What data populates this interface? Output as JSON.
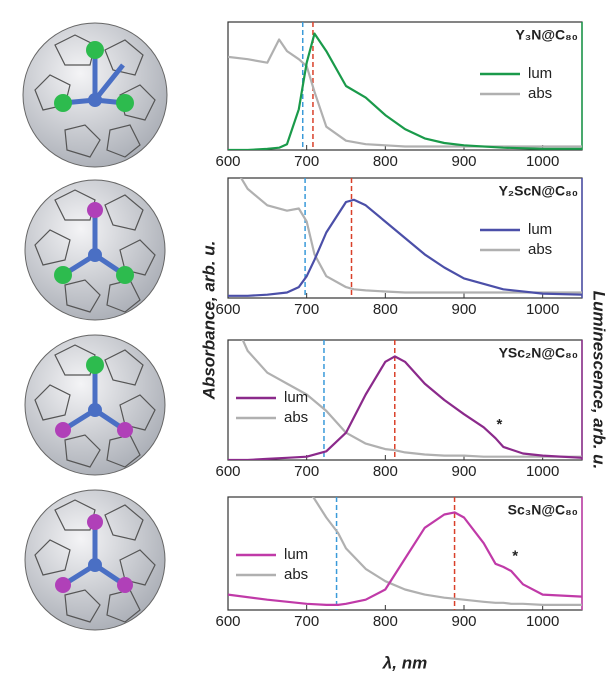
{
  "figure": {
    "x_label": "λ, nm",
    "y_label": "Absorbance, arb. u.",
    "y2_label": "Luminescence, arb. u."
  },
  "chart_data": [
    {
      "type": "line",
      "title": "Y₃N@C₈₀",
      "legend": "right",
      "frame_color": "#1a9a4a",
      "x": [
        600,
        625,
        650,
        665,
        675,
        690,
        700,
        710,
        725,
        750,
        775,
        800,
        825,
        850,
        875,
        900,
        950,
        1000,
        1050
      ],
      "series": [
        {
          "name": "lum",
          "color": "#1a9a4a",
          "values": [
            0,
            0,
            0.01,
            0.02,
            0.05,
            0.35,
            0.75,
            1.0,
            0.85,
            0.55,
            0.45,
            0.3,
            0.18,
            0.1,
            0.06,
            0.04,
            0.02,
            0.01,
            0.01
          ]
        },
        {
          "name": "abs",
          "color": "#b0b0b0",
          "values": [
            0.8,
            0.78,
            0.75,
            0.95,
            0.85,
            0.78,
            0.72,
            0.5,
            0.2,
            0.08,
            0.05,
            0.04,
            0.03,
            0.03,
            0.03,
            0.03,
            0.03,
            0.03,
            0.03
          ]
        }
      ],
      "vlines": [
        {
          "x": 695,
          "color": "#3a9ad9"
        },
        {
          "x": 708,
          "color": "#d9402a"
        }
      ],
      "xlim": [
        600,
        1050
      ],
      "xticks": [
        600,
        700,
        800,
        900,
        1000
      ],
      "ylim": [
        0,
        1.1
      ]
    },
    {
      "type": "line",
      "title": "Y₂ScN@C₈₀",
      "legend": "right",
      "frame_color": "#4b4fa8",
      "x": [
        600,
        625,
        650,
        675,
        690,
        700,
        710,
        725,
        750,
        760,
        775,
        800,
        825,
        850,
        875,
        900,
        950,
        1000,
        1050
      ],
      "series": [
        {
          "name": "lum",
          "color": "#4b4fa8",
          "values": [
            0.02,
            0.02,
            0.03,
            0.05,
            0.1,
            0.2,
            0.35,
            0.6,
            0.88,
            0.9,
            0.85,
            0.7,
            0.55,
            0.4,
            0.28,
            0.18,
            0.08,
            0.04,
            0.03
          ]
        },
        {
          "name": "abs",
          "color": "#b0b0b0",
          "values": [
            1.3,
            1.0,
            0.85,
            0.8,
            0.82,
            0.7,
            0.4,
            0.2,
            0.1,
            0.08,
            0.07,
            0.06,
            0.05,
            0.05,
            0.05,
            0.05,
            0.05,
            0.05,
            0.05
          ]
        }
      ],
      "vlines": [
        {
          "x": 698,
          "color": "#3a9ad9"
        },
        {
          "x": 757,
          "color": "#d9402a"
        }
      ],
      "xlim": [
        600,
        1050
      ],
      "xticks": [
        600,
        700,
        800,
        900,
        1000
      ],
      "ylim": [
        0,
        1.1
      ]
    },
    {
      "type": "line",
      "title": "YSc₂N@C₈₀",
      "legend": "left",
      "frame_color": "#8b2a8b",
      "x": [
        600,
        625,
        650,
        675,
        700,
        725,
        750,
        775,
        800,
        812,
        825,
        850,
        875,
        900,
        925,
        940,
        950,
        975,
        1000,
        1050
      ],
      "series": [
        {
          "name": "lum",
          "color": "#8b2a8b",
          "values": [
            0,
            0,
            0.01,
            0.02,
            0.03,
            0.08,
            0.25,
            0.6,
            0.9,
            0.95,
            0.9,
            0.7,
            0.55,
            0.42,
            0.3,
            0.2,
            0.12,
            0.06,
            0.04,
            0.02
          ]
        },
        {
          "name": "abs",
          "color": "#b0b0b0",
          "values": [
            1.4,
            1.0,
            0.8,
            0.7,
            0.6,
            0.45,
            0.25,
            0.15,
            0.1,
            0.09,
            0.07,
            0.05,
            0.04,
            0.04,
            0.03,
            0.03,
            0.03,
            0.03,
            0.03,
            0.03
          ]
        }
      ],
      "vlines": [
        {
          "x": 722,
          "color": "#3a9ad9"
        },
        {
          "x": 812,
          "color": "#d9402a"
        }
      ],
      "annotations": [
        {
          "text": "*",
          "x": 945,
          "y": 0.32
        }
      ],
      "xlim": [
        600,
        1050
      ],
      "xticks": [
        600,
        700,
        800,
        900,
        1000
      ],
      "ylim": [
        0,
        1.1
      ]
    },
    {
      "type": "line",
      "title": "Sc₃N@C₈₀",
      "legend": "left",
      "frame_color": "#c03aa8",
      "x": [
        600,
        650,
        700,
        725,
        740,
        750,
        775,
        800,
        825,
        850,
        875,
        888,
        900,
        925,
        940,
        950,
        960,
        975,
        1000,
        1025,
        1050
      ],
      "series": [
        {
          "name": "lum",
          "color": "#c03aa8",
          "values": [
            0.15,
            0.1,
            0.06,
            0.05,
            0.05,
            0.06,
            0.1,
            0.2,
            0.5,
            0.8,
            0.93,
            0.95,
            0.9,
            0.65,
            0.45,
            0.42,
            0.38,
            0.25,
            0.15,
            0.14,
            0.13
          ]
        },
        {
          "name": "abs",
          "color": "#b0b0b0",
          "values": [
            null,
            null,
            1.2,
            0.9,
            0.75,
            0.6,
            0.4,
            0.28,
            0.2,
            0.15,
            0.12,
            0.11,
            0.1,
            0.08,
            0.07,
            0.07,
            0.06,
            0.06,
            0.05,
            0.05,
            0.05
          ]
        }
      ],
      "vlines": [
        {
          "x": 738,
          "color": "#3a9ad9"
        },
        {
          "x": 888,
          "color": "#d9402a"
        }
      ],
      "annotations": [
        {
          "text": "*",
          "x": 965,
          "y": 0.52
        }
      ],
      "xlim": [
        600,
        1050
      ],
      "xticks": [
        600,
        700,
        800,
        900,
        1000
      ],
      "ylim": [
        0,
        1.1
      ]
    }
  ]
}
